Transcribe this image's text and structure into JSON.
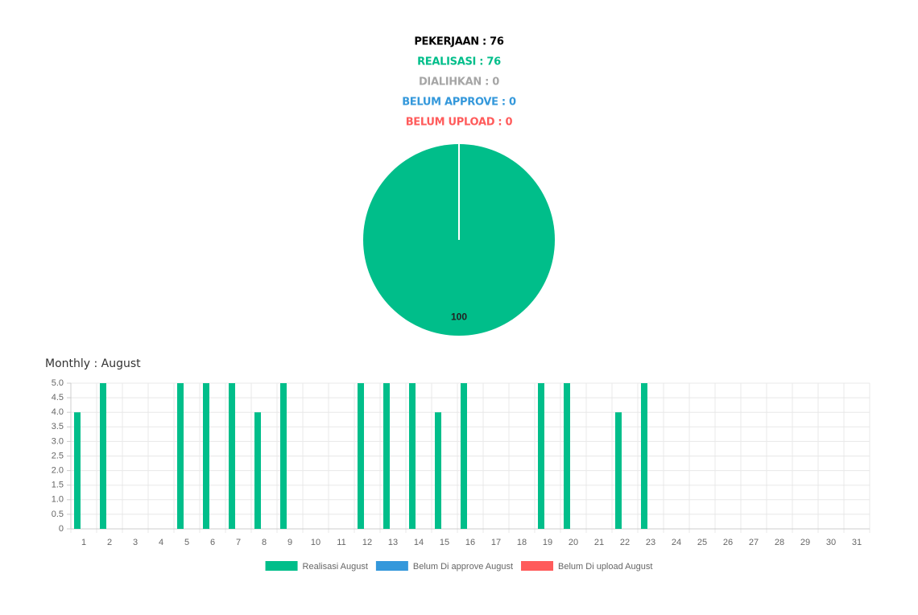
{
  "summary": [
    {
      "text": "PEKERJAAN : 76",
      "color": "#000000"
    },
    {
      "text": "REALISASI : 76",
      "color": "#00be8a"
    },
    {
      "text": "DIALIHKAN : 0",
      "color": "#a6a6a6"
    },
    {
      "text": "BELUM APPROVE : 0",
      "color": "#3498db"
    },
    {
      "text": "BELUM UPLOAD : 0",
      "color": "#ff5b5b"
    }
  ],
  "chart_data": [
    {
      "type": "pie",
      "categories": [
        null
      ],
      "values": [
        100
      ],
      "colors": [
        "#00be8a"
      ]
    },
    {
      "type": "bar",
      "title": "Monthly : August",
      "categories": [
        "1",
        "2",
        "3",
        "4",
        "5",
        "6",
        "7",
        "8",
        "9",
        "10",
        "11",
        "12",
        "13",
        "14",
        "15",
        "16",
        "17",
        "18",
        "19",
        "20",
        "21",
        "22",
        "23",
        "24",
        "25",
        "26",
        "27",
        "28",
        "29",
        "30",
        "31"
      ],
      "series": [
        {
          "name": "Realisasi August",
          "color": "#00be8a",
          "values": [
            4,
            5,
            0,
            0,
            5,
            5,
            5,
            4,
            5,
            0,
            0,
            5,
            5,
            5,
            4,
            5,
            0,
            0,
            5,
            5,
            0,
            4,
            5,
            0,
            0,
            0,
            0,
            0,
            0,
            0,
            0
          ]
        },
        {
          "name": "Belum Di approve August",
          "color": "#3498db",
          "values": [
            0,
            0,
            0,
            0,
            0,
            0,
            0,
            0,
            0,
            0,
            0,
            0,
            0,
            0,
            0,
            0,
            0,
            0,
            0,
            0,
            0,
            0,
            0,
            0,
            0,
            0,
            0,
            0,
            0,
            0,
            0
          ]
        },
        {
          "name": "Belum Di upload August",
          "color": "#ff5b5b",
          "values": [
            0,
            0,
            0,
            0,
            0,
            0,
            0,
            0,
            0,
            0,
            0,
            0,
            0,
            0,
            0,
            0,
            0,
            0,
            0,
            0,
            0,
            0,
            0,
            0,
            0,
            0,
            0,
            0,
            0,
            0,
            0
          ]
        }
      ],
      "ylim": [
        0,
        5
      ],
      "yticks": [
        0,
        0.5,
        {
          "value": 1,
          "label": "1.0"
        },
        1.5,
        {
          "value": 2,
          "label": "2.0"
        },
        2.5,
        {
          "value": 3,
          "label": "3.0"
        },
        3.5,
        {
          "value": 4,
          "label": "4.0"
        },
        4.5,
        {
          "value": 5,
          "label": "5.0"
        }
      ],
      "grid": true,
      "legend": "bottom"
    }
  ]
}
